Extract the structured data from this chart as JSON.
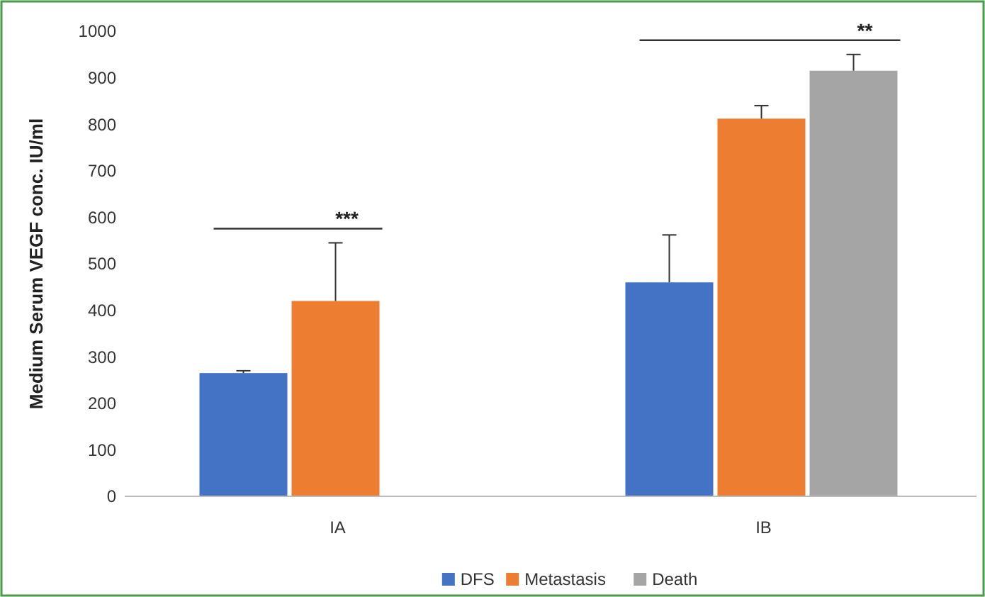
{
  "chart_data": {
    "type": "bar",
    "ylabel": "Medium Serum VEGF conc. IU/ml",
    "categories": [
      "IA",
      "IB"
    ],
    "series": [
      {
        "name": "DFS",
        "color": "#4472c4",
        "values": [
          265,
          460
        ],
        "errors": [
          [
            265,
            270
          ],
          [
            460,
            562
          ]
        ]
      },
      {
        "name": "Metastasis",
        "color": "#ed7d31",
        "values": [
          420,
          812
        ],
        "errors": [
          [
            420,
            545
          ],
          [
            812,
            840
          ]
        ]
      },
      {
        "name": "Death",
        "color": "#a5a5a5",
        "values": [
          null,
          915
        ],
        "errors": [
          null,
          [
            915,
            950
          ]
        ]
      }
    ],
    "ylim": [
      0,
      1000
    ],
    "yticks": [
      0,
      100,
      200,
      300,
      400,
      500,
      600,
      700,
      800,
      900,
      1000
    ],
    "grid": false,
    "legend": "bottom",
    "annotations": [
      "***",
      "**"
    ]
  }
}
